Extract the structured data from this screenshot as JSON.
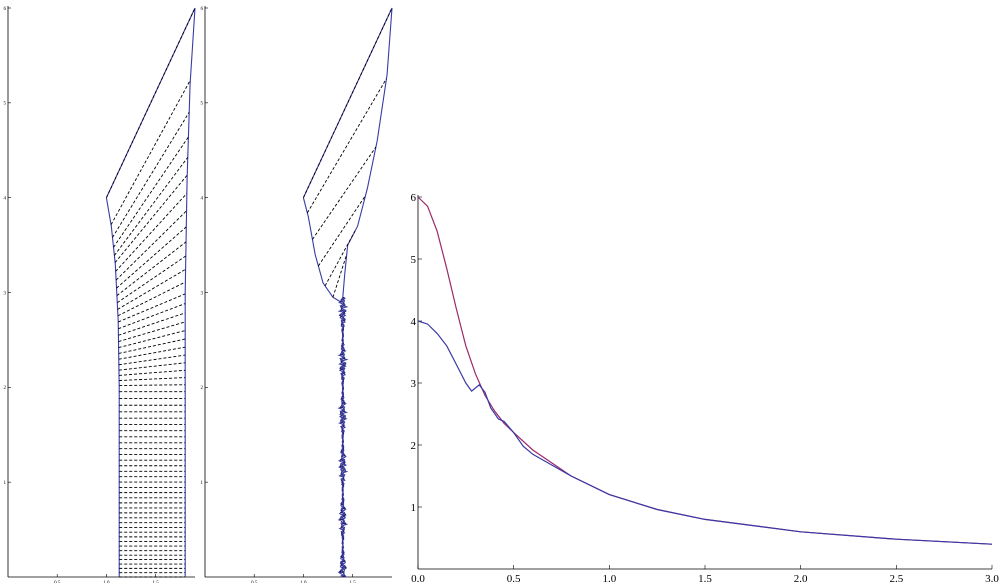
{
  "chart_data": [
    {
      "type": "line",
      "title": "",
      "xlabel": "",
      "ylabel": "",
      "xlim": [
        0,
        1.9
      ],
      "ylim": [
        0,
        6
      ],
      "x_ticks": [
        "0.5",
        "1.0",
        "1.5"
      ],
      "y_ticks": [
        "1",
        "2",
        "3",
        "4",
        "5",
        "6"
      ],
      "series": [
        {
          "left_boundary": [
            [
              1.0,
              4.0
            ],
            [
              1.05,
              3.7
            ],
            [
              1.09,
              3.3
            ],
            [
              1.12,
              2.7
            ],
            [
              1.13,
              2.0
            ],
            [
              1.13,
              1.0
            ],
            [
              1.13,
              0.0
            ]
          ],
          "right_boundary": [
            [
              1.9,
              6.0
            ],
            [
              1.85,
              5.2
            ],
            [
              1.82,
              4.2
            ],
            [
              1.8,
              3.0
            ],
            [
              1.8,
              2.0
            ],
            [
              1.8,
              1.0
            ],
            [
              1.8,
              0.0
            ]
          ]
        }
      ],
      "dashed_segments": 60,
      "grid": false
    },
    {
      "type": "line",
      "title": "",
      "xlabel": "",
      "ylabel": "",
      "xlim": [
        0,
        1.9
      ],
      "ylim": [
        0,
        6
      ],
      "x_ticks": [
        "0.5",
        "1.0",
        "1.5"
      ],
      "y_ticks": [
        "1",
        "2",
        "3",
        "4",
        "5",
        "6"
      ],
      "series": [
        {
          "upper_left": [
            [
              1.0,
              4.0
            ],
            [
              1.05,
              3.8
            ],
            [
              1.12,
              3.4
            ],
            [
              1.2,
              3.1
            ],
            [
              1.3,
              2.95
            ],
            [
              1.38,
              2.9
            ]
          ],
          "upper_right": [
            [
              1.9,
              6.0
            ],
            [
              1.85,
              5.3
            ],
            [
              1.75,
              4.6
            ],
            [
              1.65,
              4.1
            ],
            [
              1.55,
              3.7
            ],
            [
              1.45,
              3.5
            ],
            [
              1.42,
              3.2
            ],
            [
              1.4,
              2.95
            ]
          ],
          "wiggle_center_x": 1.4,
          "wiggle_y_range": [
            0.0,
            2.95
          ]
        }
      ],
      "dashed_segments": 6,
      "grid": false
    },
    {
      "type": "line",
      "title": "",
      "xlabel": "",
      "ylabel": "",
      "xlim": [
        0,
        3.0
      ],
      "ylim": [
        0,
        6
      ],
      "x_ticks": [
        "0.0",
        "0.5",
        "1.0",
        "1.5",
        "2.0",
        "2.5",
        "3.0"
      ],
      "y_ticks": [
        "1",
        "2",
        "3",
        "4",
        "5",
        "6"
      ],
      "series": [
        {
          "color": "#9a2a6a",
          "points": [
            [
              0.0,
              6.0
            ],
            [
              0.05,
              5.85
            ],
            [
              0.1,
              5.45
            ],
            [
              0.15,
              4.85
            ],
            [
              0.2,
              4.2
            ],
            [
              0.25,
              3.6
            ],
            [
              0.3,
              3.15
            ],
            [
              0.35,
              2.8
            ],
            [
              0.4,
              2.55
            ],
            [
              0.45,
              2.35
            ],
            [
              0.5,
              2.2
            ],
            [
              0.6,
              1.92
            ],
            [
              0.8,
              1.5
            ],
            [
              1.0,
              1.2
            ],
            [
              1.25,
              0.96
            ],
            [
              1.5,
              0.8
            ],
            [
              2.0,
              0.6
            ],
            [
              2.5,
              0.48
            ],
            [
              3.0,
              0.4
            ]
          ]
        },
        {
          "color": "#3a3aa6",
          "points": [
            [
              0.0,
              4.0
            ],
            [
              0.05,
              3.95
            ],
            [
              0.1,
              3.8
            ],
            [
              0.15,
              3.6
            ],
            [
              0.2,
              3.3
            ],
            [
              0.25,
              3.0
            ],
            [
              0.28,
              2.87
            ],
            [
              0.3,
              2.92
            ],
            [
              0.32,
              2.97
            ],
            [
              0.35,
              2.85
            ],
            [
              0.38,
              2.6
            ],
            [
              0.42,
              2.42
            ],
            [
              0.45,
              2.38
            ],
            [
              0.5,
              2.2
            ],
            [
              0.55,
              1.98
            ],
            [
              0.6,
              1.85
            ],
            [
              0.8,
              1.5
            ],
            [
              1.0,
              1.2
            ],
            [
              1.25,
              0.96
            ],
            [
              1.5,
              0.8
            ],
            [
              2.0,
              0.6
            ],
            [
              2.5,
              0.48
            ],
            [
              3.0,
              0.4
            ]
          ]
        }
      ],
      "grid": false
    }
  ]
}
